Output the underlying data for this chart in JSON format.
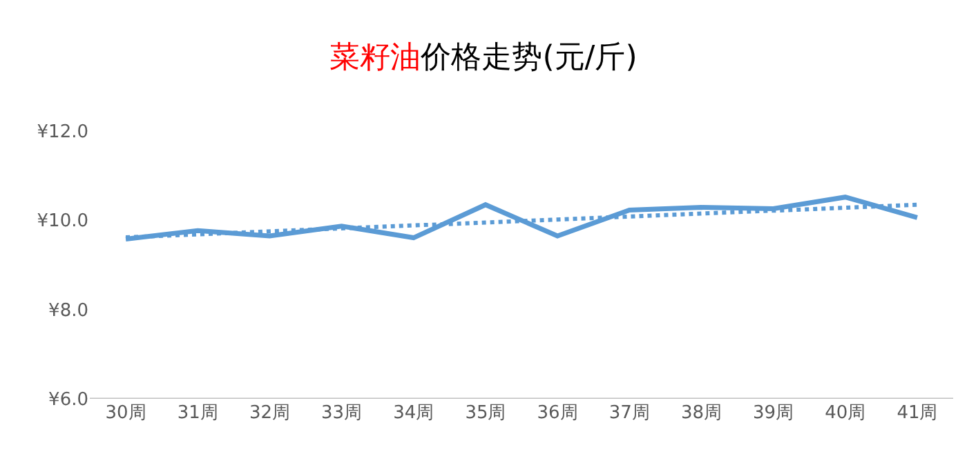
{
  "chart_data": {
    "type": "line",
    "title": "菜籽油价格走势(元/斤)",
    "categories": [
      "30周",
      "31周",
      "32周",
      "33周",
      "34周",
      "35周",
      "36周",
      "37周",
      "38周",
      "39周",
      "40周",
      "41周"
    ],
    "series": [
      {
        "color": "#5b9bd5",
        "values": [
          9.58,
          9.77,
          9.65,
          9.87,
          9.61,
          10.35,
          9.65,
          10.23,
          10.29,
          10.26,
          10.52,
          10.06
        ],
        "line_style": "solid"
      },
      {
        "type": "line",
        "color": "#5b9bd5",
        "x": [
          "30周",
          "41周"
        ],
        "values": [
          9.62,
          10.35
        ],
        "line_style": "dotted"
      }
    ],
    "ylim": [
      6,
      12
    ],
    "yticks": [
      {
        "value": 6,
        "label": "¥6.0"
      },
      {
        "value": 8,
        "label": "¥8.0"
      },
      {
        "value": 10,
        "label": "¥10.0"
      },
      {
        "value": 12,
        "label": "¥12.0"
      }
    ],
    "marker": "none"
  }
}
